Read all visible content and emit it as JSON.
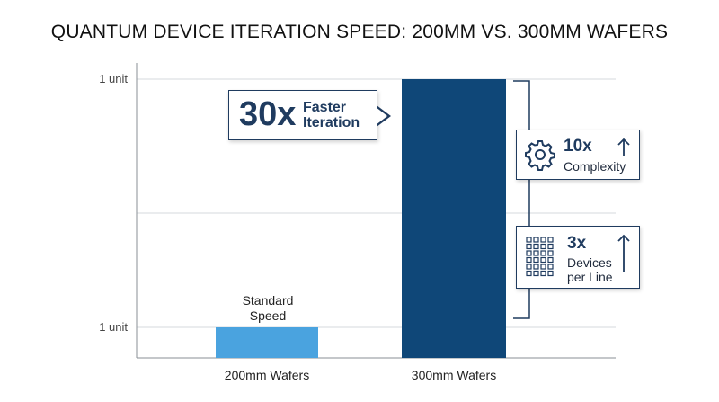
{
  "chart_data": {
    "type": "bar",
    "title": "QUANTUM DEVICE ITERATION SPEED: 200MM VS. 300MM WAFERS",
    "categories": [
      "200mm Wafers",
      "300mm Wafers"
    ],
    "values": [
      1,
      30
    ],
    "ylim": [
      0,
      32
    ],
    "y_tick_labels": [
      "1 unit",
      "1 unit"
    ],
    "grid": true,
    "colors": [
      "#4aa3df",
      "#0f4778"
    ],
    "bar_annotation": [
      "Standard",
      "Speed"
    ]
  },
  "callout": {
    "value": "30x",
    "label_line1": "Faster",
    "label_line2": "Iteration"
  },
  "factors": [
    {
      "value": "10x",
      "label_line1": "Complexity",
      "label_line2": "",
      "icon": "gear-icon",
      "trend": "up-arrow-icon"
    },
    {
      "value": "3x",
      "label_line1": "Devices",
      "label_line2": "per Line",
      "icon": "grid-icon",
      "trend": "up-arrow-icon"
    }
  ]
}
